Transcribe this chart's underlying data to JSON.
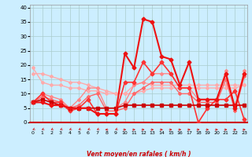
{
  "xlabel": "Vent moyen/en rafales ( km/h )",
  "background_color": "#cceeff",
  "grid_color": "#aacccc",
  "x_ticks": [
    0,
    1,
    2,
    3,
    4,
    5,
    6,
    7,
    8,
    9,
    10,
    11,
    12,
    13,
    14,
    15,
    16,
    17,
    18,
    19,
    20,
    21,
    22,
    23
  ],
  "y_ticks": [
    0,
    5,
    10,
    15,
    20,
    25,
    30,
    35,
    40
  ],
  "ylim": [
    0,
    41
  ],
  "xlim": [
    -0.3,
    23.3
  ],
  "series": [
    {
      "color": "#ffaaaa",
      "linewidth": 1.0,
      "marker": "D",
      "markersize": 2.0,
      "y": [
        17,
        17,
        16,
        15,
        14,
        14,
        13,
        12,
        11,
        10,
        10,
        13,
        14,
        13,
        13,
        13,
        13,
        13,
        13,
        13,
        13,
        13,
        13,
        13
      ]
    },
    {
      "color": "#ffaaaa",
      "linewidth": 1.0,
      "marker": "D",
      "markersize": 2.0,
      "y": [
        19,
        14,
        13,
        13,
        12,
        12,
        11,
        11,
        10,
        10,
        10,
        10,
        11,
        12,
        12,
        12,
        12,
        12,
        12,
        12,
        12,
        12,
        12,
        13
      ]
    },
    {
      "color": "#ff8888",
      "linewidth": 1.0,
      "marker": "D",
      "markersize": 2.0,
      "y": [
        7,
        10,
        9,
        8,
        5,
        8,
        12,
        12,
        5,
        5,
        7,
        13,
        14,
        17,
        17,
        17,
        12,
        12,
        8,
        8,
        8,
        18,
        5,
        18
      ]
    },
    {
      "color": "#ff6666",
      "linewidth": 1.0,
      "marker": "D",
      "markersize": 2.0,
      "y": [
        7,
        9,
        8,
        7,
        5,
        6,
        9,
        10,
        4,
        4,
        5,
        10,
        12,
        14,
        14,
        14,
        10,
        10,
        7,
        7,
        7,
        15,
        4,
        16
      ]
    },
    {
      "color": "#ff3333",
      "linewidth": 1.2,
      "marker": "D",
      "markersize": 2.5,
      "y": [
        7,
        10,
        7,
        7,
        4,
        5,
        8,
        3,
        3,
        3,
        14,
        14,
        21,
        17,
        21,
        17,
        12,
        12,
        0,
        5,
        8,
        8,
        11,
        1
      ]
    },
    {
      "color": "#cc0000",
      "linewidth": 1.2,
      "marker": "s",
      "markersize": 2.5,
      "y": [
        7,
        8,
        7,
        6,
        5,
        5,
        5,
        5,
        5,
        5,
        6,
        6,
        6,
        6,
        6,
        6,
        6,
        6,
        6,
        6,
        6,
        6,
        6,
        6
      ]
    },
    {
      "color": "#ee1111",
      "linewidth": 1.5,
      "marker": "D",
      "markersize": 2.5,
      "y": [
        7,
        7,
        6,
        6,
        5,
        5,
        5,
        3,
        3,
        3,
        24,
        19,
        36,
        35,
        23,
        22,
        13,
        21,
        8,
        8,
        8,
        17,
        5,
        17
      ]
    }
  ],
  "arrow_angles": [
    225,
    225,
    225,
    225,
    225,
    225,
    225,
    225,
    270,
    225,
    90,
    90,
    90,
    90,
    90,
    90,
    90,
    90,
    90,
    90,
    90,
    90,
    90,
    90
  ]
}
